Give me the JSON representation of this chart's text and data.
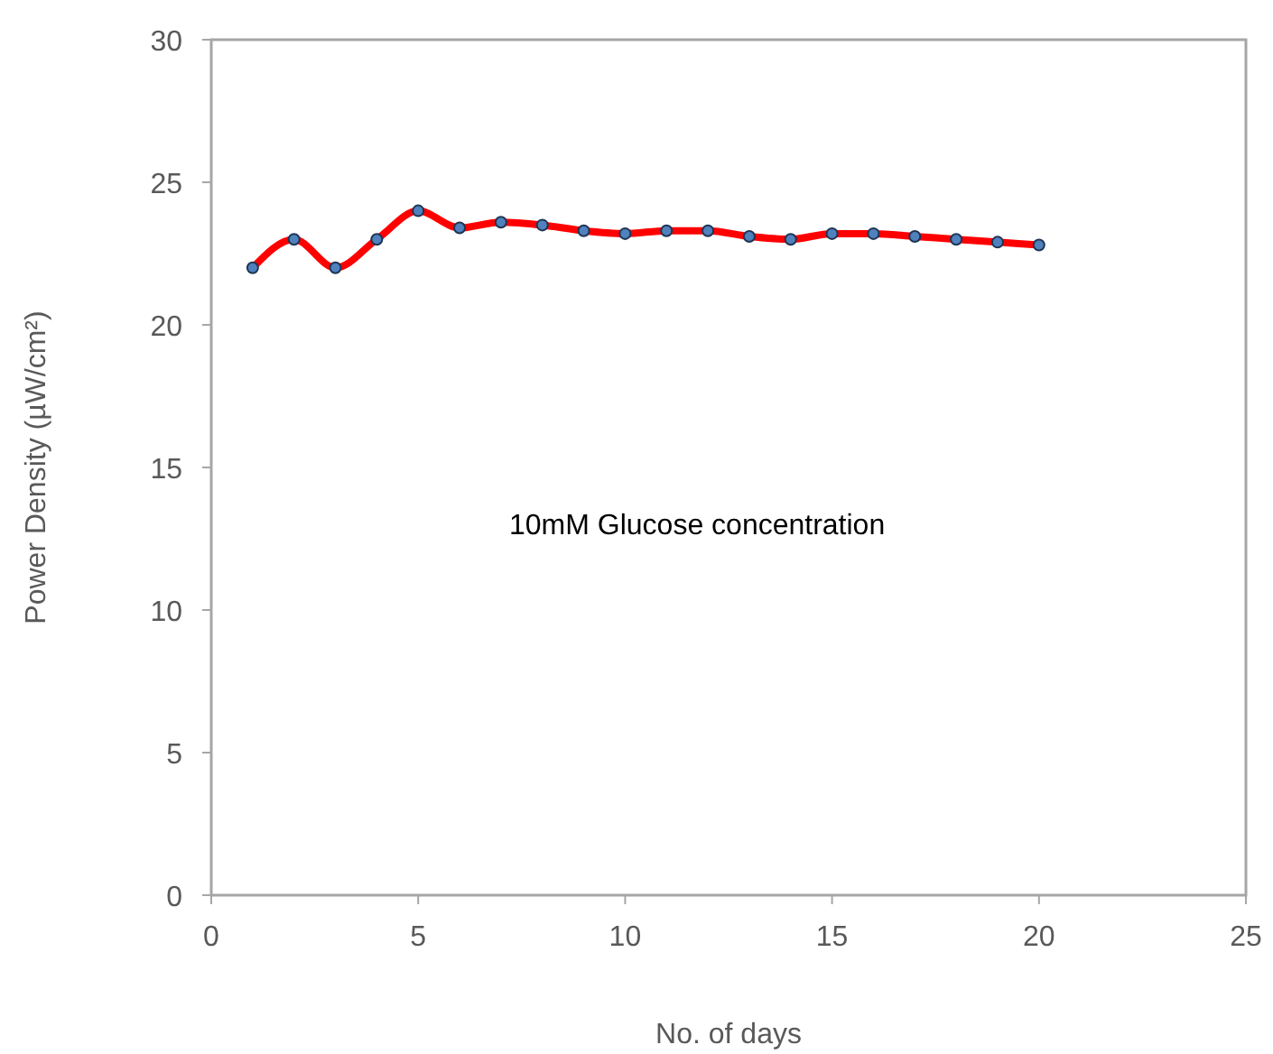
{
  "chart_data": {
    "type": "line",
    "xlabel": "No. of days",
    "ylabel": "Power Density (µW/cm²)",
    "x": [
      1,
      2,
      3,
      4,
      5,
      6,
      7,
      8,
      9,
      10,
      11,
      12,
      13,
      14,
      15,
      16,
      17,
      18,
      19,
      20
    ],
    "series": [
      {
        "color": "#ff0000",
        "values": [
          22,
          23,
          22,
          23,
          24,
          23.4,
          23.6,
          23.5,
          23.3,
          23.2,
          23.3,
          23.3,
          23.1,
          23.0,
          23.2,
          23.2,
          23.1,
          23.0,
          22.9,
          22.8
        ]
      }
    ],
    "xlim": [
      0,
      25
    ],
    "xticks": [
      0,
      5,
      10,
      15,
      20,
      25
    ],
    "ylim": [
      0,
      30
    ],
    "yticks": [
      0,
      5,
      10,
      15,
      20,
      25,
      30
    ],
    "grid": false,
    "marker": "circle",
    "line_style": "solid",
    "annotations": [
      "10mM Glucose concentration"
    ]
  }
}
